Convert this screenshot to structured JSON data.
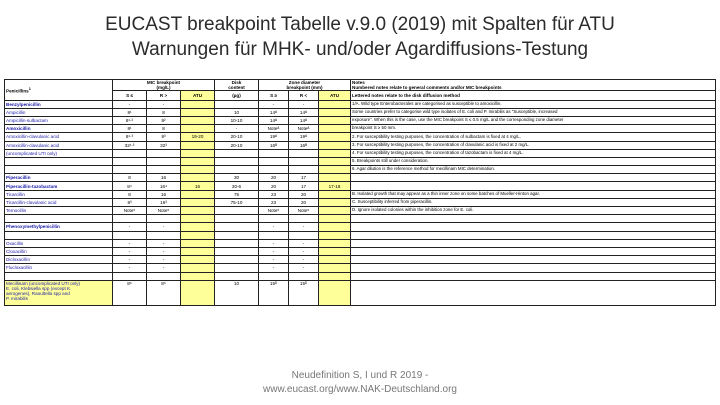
{
  "title": {
    "line1": "EUCAST breakpoint Tabelle v.9.0 (2019) mit Spalten für ATU",
    "line2": "Warnungen für MHK- und/oder Agardiffusions-Testung"
  },
  "table": {
    "header": {
      "group_title": "Penicillins",
      "group_mark": "1",
      "mic_title": "MIC breakpoint",
      "mic_unit": "(mg/L)",
      "disk_title": "Disk",
      "disk_sub": "content",
      "disk_unit": "(µg)",
      "zone_title": "Zone diameter",
      "zone_unit": "breakpoint (mm)",
      "notes_title": "Notes",
      "notes_sub1": "Numbered notes relate to general comments and/or MIC breakpoints",
      "notes_sub2": "Lettered notes relate to the disk diffusion method",
      "s_le": "S ≤",
      "r_gt": "R >",
      "s_ge": "S ≥",
      "r_lt": "R <",
      "atu": "ATU"
    },
    "rows": [
      {
        "drug": "Benzylpenicillin",
        "kind": "grp",
        "s": "-",
        "r": "-",
        "disk": "",
        "zs": "-",
        "zr": "-",
        "note": "1/A. Wild type Enterobacterales are categorised as susceptible to amoxicillin."
      },
      {
        "drug": "Ampicillin",
        "kind": "drug",
        "s": "8¹",
        "r": "8",
        "disk": "10",
        "zs": "14ᴬ",
        "zr": "14ᴬ",
        "note": "Some countries prefer to categorise wild type isolates of E. coli and P. mirabilis as \"Susceptible, increased"
      },
      {
        "drug": "Ampicillin-sulbactam",
        "kind": "drug",
        "s": "8¹·²",
        "r": "8²",
        "disk": "10-10",
        "zs": "14ᴬ",
        "zr": "14ᴬ",
        "note": "exposure\". When this is the case, use the MIC breakpoint S ≤ 0.5 mg/L and the corresponding zone diameter"
      },
      {
        "drug": "Amoxicillin",
        "kind": "grp",
        "s": "8¹",
        "r": "8",
        "disk": "-",
        "zs": "Noteᴬ",
        "zr": "Noteᴬ",
        "note": "breakpoint S ≥ 50 mm."
      },
      {
        "drug": "Amoxicillin-clavulanic acid",
        "kind": "drug",
        "s": "8¹·³",
        "r": "8³",
        "disk": "20-10",
        "zs": "19ᴬ",
        "zr": "19ᴬ",
        "note": "2. For susceptibility testing purposes, the concentration of sulbactam is fixed at 4 mg/L.",
        "atu": "19-20"
      },
      {
        "drug": "Amoxicillin-clavulanic acid",
        "kind": "drug",
        "s": "32¹·³",
        "r": "32³",
        "disk": "20-10",
        "zs": "16ᴮ",
        "zr": "16ᴮ",
        "note": "3. For susceptibility testing purposes, the concentration of clavulanic acid is fixed at 2 mg/L."
      },
      {
        "drug": "(uncomplicated UTI only)",
        "kind": "drug",
        "s": "",
        "r": "",
        "disk": "",
        "zs": "",
        "zr": "",
        "note": "4. For susceptibility testing purposes, the concentration of tazobactam is fixed at 4 mg/L."
      },
      {
        "drug": "",
        "kind": "drug",
        "s": "",
        "r": "",
        "disk": "",
        "zs": "",
        "zr": "",
        "note": "5. Breakpoints still under consideration."
      },
      {
        "drug": "",
        "kind": "drug",
        "s": "",
        "r": "",
        "disk": "",
        "zs": "",
        "zr": "",
        "note": "6. Agar dilution is the reference method for mecillinam MIC determination."
      },
      {
        "drug": "Piperacillin",
        "kind": "grp",
        "s": "8",
        "r": "16",
        "disk": "30",
        "zs": "20",
        "zr": "17",
        "note": ""
      },
      {
        "drug": "Piperacillin-tazobactam",
        "kind": "grp",
        "s": "8⁴",
        "r": "16⁴",
        "disk": "30-6",
        "zs": "20",
        "zr": "17",
        "note": "",
        "atu": "16",
        "zatu": "17-18"
      },
      {
        "drug": "Ticarcillin",
        "kind": "drug",
        "s": "8",
        "r": "16",
        "disk": "75",
        "zs": "23",
        "zr": "20",
        "note": "B. Isolated growth that may appear as a thin inner zone on some batches of Mueller-Hinton agar."
      },
      {
        "drug": "Ticarcillin-clavulanic acid",
        "kind": "drug",
        "s": "8³",
        "r": "16³",
        "disk": "75-10",
        "zs": "23",
        "zr": "20",
        "note": "C. Susceptibility inferred from piperacillin."
      },
      {
        "drug": "Temocillin",
        "kind": "drug",
        "s": "Note⁵",
        "r": "Note⁵",
        "disk": "",
        "zs": "Note⁵",
        "zr": "Note⁵",
        "note": "D. Ignore isolated colonies within the inhibition zone for E. coli."
      },
      {
        "drug": "",
        "kind": "drug",
        "s": "",
        "r": "",
        "disk": "",
        "zs": "",
        "zr": "",
        "note": ""
      },
      {
        "drug": "Phenoxymethylpenicillin",
        "kind": "grp",
        "s": "-",
        "r": "-",
        "disk": "",
        "zs": "-",
        "zr": "-",
        "note": ""
      },
      {
        "drug": "",
        "kind": "drug",
        "s": "",
        "r": "",
        "disk": "",
        "zs": "",
        "zr": "",
        "note": ""
      },
      {
        "drug": "Oxacillin",
        "kind": "drug",
        "s": "-",
        "r": "-",
        "disk": "",
        "zs": "-",
        "zr": "-",
        "note": ""
      },
      {
        "drug": "Cloxacillin",
        "kind": "drug",
        "s": "-",
        "r": "-",
        "disk": "",
        "zs": "-",
        "zr": "-",
        "note": ""
      },
      {
        "drug": "Dicloxacillin",
        "kind": "drug",
        "s": "-",
        "r": "-",
        "disk": "",
        "zs": "-",
        "zr": "-",
        "note": ""
      },
      {
        "drug": "Flucloxacillin",
        "kind": "drug",
        "s": "-",
        "r": "-",
        "disk": "",
        "zs": "-",
        "zr": "-",
        "note": ""
      },
      {
        "drug": "",
        "kind": "drug",
        "s": "",
        "r": "",
        "disk": "",
        "zs": "",
        "zr": "",
        "note": ""
      }
    ],
    "mecillinam": {
      "line1": "Mecillinam (uncomplicated UTI only)",
      "line2": "E. coli, Klebsiella spp (except K.",
      "line3": "aerogenes), Raoultella spp and",
      "line4": "P. mirabilis",
      "s": "8⁶",
      "r": "8⁶",
      "disk": "10",
      "zs": "15ᴰ",
      "zr": "15ᴰ"
    }
  },
  "footer": {
    "line1": "Neudefinition S, I und R 2019 -",
    "line2": "www.eucast.org/www.NAK-Deutschland.org"
  }
}
